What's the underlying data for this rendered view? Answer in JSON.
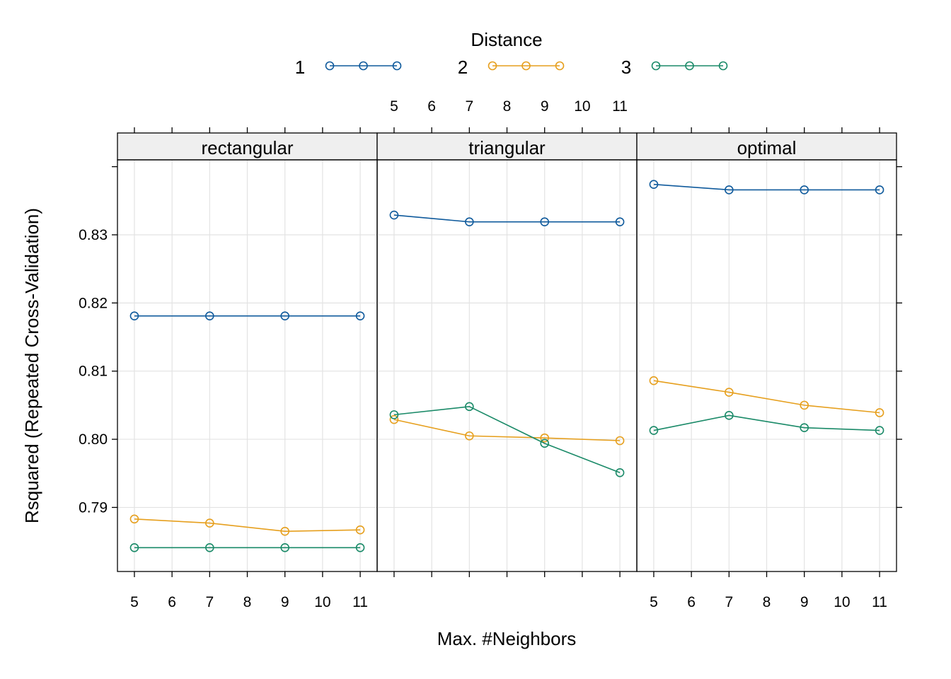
{
  "legend": {
    "title": "Distance",
    "entries": [
      {
        "label": "1",
        "color": "#0F5A9C"
      },
      {
        "label": "2",
        "color": "#E69F1D"
      },
      {
        "label": "3",
        "color": "#1A8A68"
      }
    ]
  },
  "xlabel": "Max. #Neighbors",
  "ylabel": "Rsquared (Repeated Cross-Validation)",
  "chart_data": {
    "type": "line",
    "x": [
      5,
      7,
      9,
      11
    ],
    "xticks": [
      5,
      6,
      7,
      8,
      9,
      10,
      11
    ],
    "xlim": [
      4.55,
      11.45
    ],
    "yticks": [
      "0.79",
      "0.80",
      "0.81",
      "0.82",
      "0.83"
    ],
    "ytick_values": [
      0.79,
      0.8,
      0.81,
      0.82,
      0.83
    ],
    "ylim": [
      0.7806,
      0.841
    ],
    "grid": true,
    "legend_position": "top",
    "panels": [
      {
        "name": "rectangular",
        "series": [
          {
            "name": "1",
            "values": [
              0.8181,
              0.8181,
              0.8181,
              0.8181
            ]
          },
          {
            "name": "2",
            "values": [
              0.7883,
              0.7877,
              0.7865,
              0.7867
            ]
          },
          {
            "name": "3",
            "values": [
              0.7841,
              0.7841,
              0.7841,
              0.7841
            ]
          }
        ]
      },
      {
        "name": "triangular",
        "series": [
          {
            "name": "1",
            "values": [
              0.8329,
              0.8319,
              0.8319,
              0.8319
            ]
          },
          {
            "name": "2",
            "values": [
              0.8029,
              0.8005,
              0.8002,
              0.7998
            ]
          },
          {
            "name": "3",
            "values": [
              0.8036,
              0.8048,
              0.7994,
              0.7951
            ]
          }
        ]
      },
      {
        "name": "optimal",
        "series": [
          {
            "name": "1",
            "values": [
              0.8374,
              0.8366,
              0.8366,
              0.8366
            ]
          },
          {
            "name": "2",
            "values": [
              0.8086,
              0.8069,
              0.805,
              0.8039
            ]
          },
          {
            "name": "3",
            "values": [
              0.8013,
              0.8035,
              0.8017,
              0.8013
            ]
          }
        ]
      }
    ]
  }
}
